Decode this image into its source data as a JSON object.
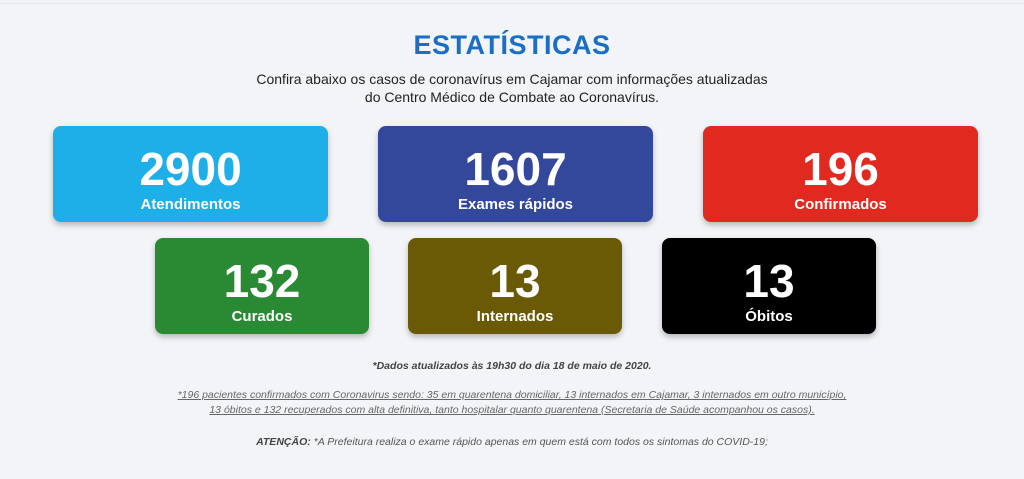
{
  "header": {
    "title": "ESTATÍSTICAS",
    "subtitle_line1": "Confira abaixo os casos de coronavírus em Cajamar com informações atualizadas",
    "subtitle_line2": "do Centro Médico de Combate ao Coronavírus."
  },
  "stats": [
    {
      "value": "2900",
      "label": "Atendimentos",
      "color": "#1eaee8"
    },
    {
      "value": "1607",
      "label": "Exames rápidos",
      "color": "#33479b"
    },
    {
      "value": "196",
      "label": "Confirmados",
      "color": "#e0291f"
    },
    {
      "value": "132",
      "label": "Curados",
      "color": "#2a8a34"
    },
    {
      "value": "13",
      "label": "Internados",
      "color": "#6b5a05"
    },
    {
      "value": "13",
      "label": "Óbitos",
      "color": "#000000"
    }
  ],
  "footer": {
    "updated": "*Dados atualizados às 19h30 do dia 18 de maio de 2020.",
    "note_line1": "*196 pacientes confirmados com Coronavirus sendo: 35 em quarentena domiciliar, 13 internados em Cajamar, 3 internados em outro município,",
    "note_line2": "13 óbitos e 132 recuperados com alta definitiva, tanto hospitalar quanto quarentena (Secretaria de Saúde acompanhou os casos).",
    "attention_label": "ATENÇÃO:",
    "attention_text": " *A Prefeitura realiza o exame rápido apenas em quem está com todos os sintomas do COVID-19;"
  }
}
